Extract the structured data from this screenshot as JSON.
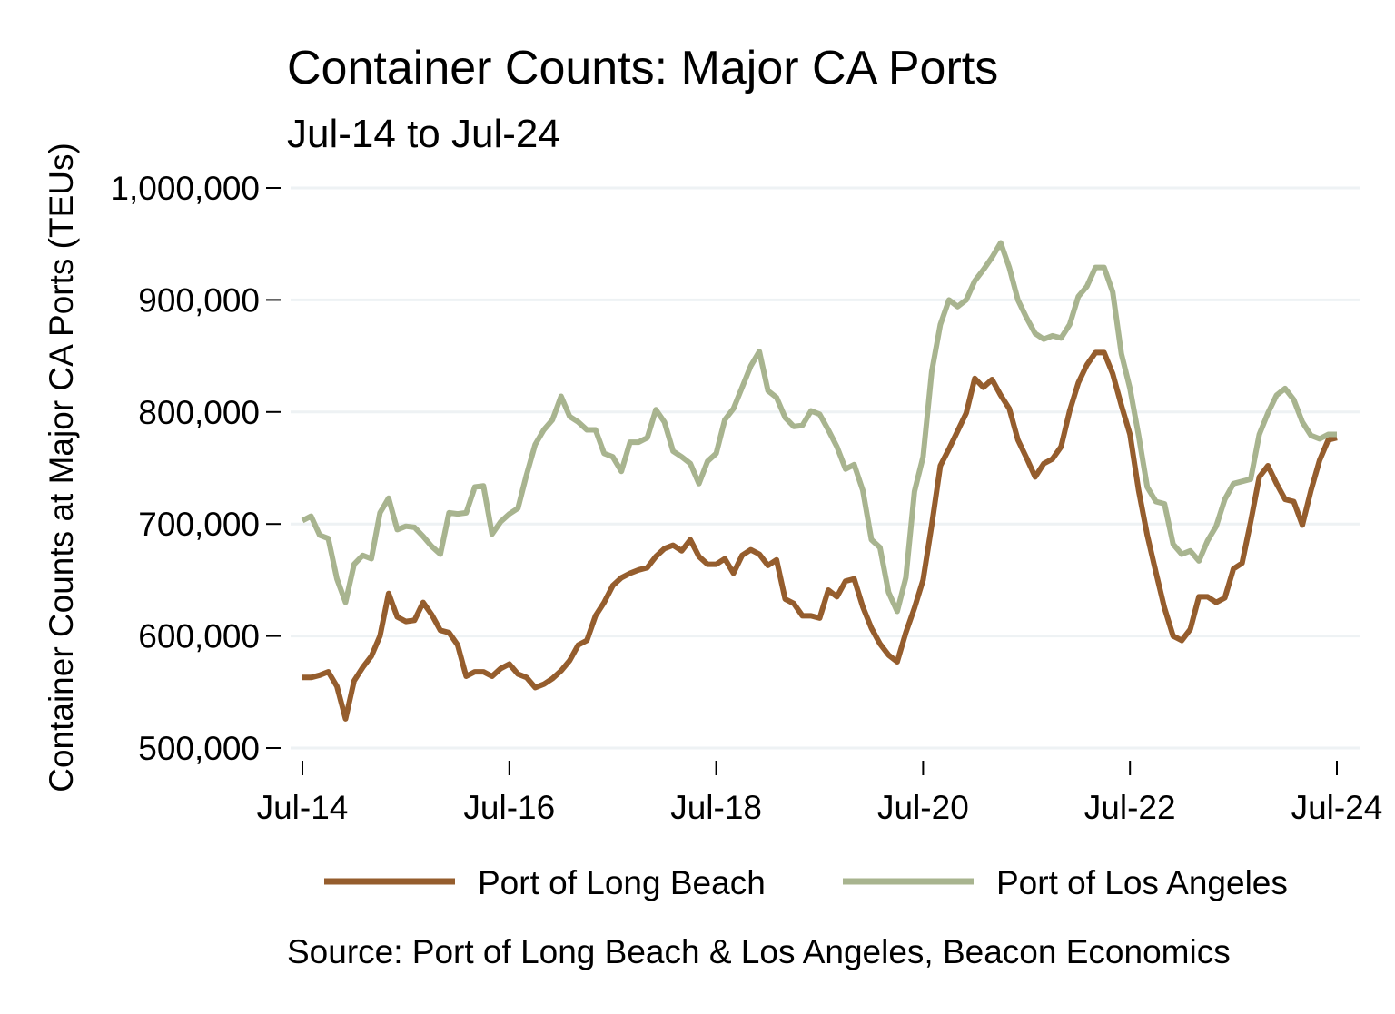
{
  "chart_data": {
    "type": "line",
    "title": "Container Counts: Major CA Ports",
    "subtitle": "Jul-14 to Jul-24",
    "xlabel": "",
    "ylabel": "Container Counts at Major CA Ports (TEUs)",
    "source": "Source: Port of Long Beach & Los Angeles, Beacon Economics",
    "x_unit": "months since Jul-14",
    "xlim": [
      0,
      120
    ],
    "ylim": [
      500000,
      1000000
    ],
    "yticks": [
      500000,
      600000,
      700000,
      800000,
      900000,
      1000000
    ],
    "ytick_labels": [
      "500,000",
      "600,000",
      "700,000",
      "800,000",
      "900,000",
      "1,000,000"
    ],
    "xticks": [
      0,
      24,
      48,
      72,
      96,
      120
    ],
    "xtick_labels": [
      "Jul-14",
      "Jul-16",
      "Jul-18",
      "Jul-20",
      "Jul-22",
      "Jul-24"
    ],
    "grid": true,
    "legend_position": "bottom",
    "series": [
      {
        "name": "Port of Long Beach",
        "color": "#955D2D",
        "values": [
          563,
          563,
          565,
          568,
          555,
          526,
          560,
          572,
          582,
          600,
          638,
          617,
          613,
          614,
          630,
          619,
          605,
          603,
          592,
          564,
          568,
          568,
          564,
          571,
          575,
          566,
          563,
          554,
          557,
          562,
          569,
          578,
          592,
          596,
          618,
          630,
          645,
          652,
          656,
          659,
          661,
          671,
          678,
          681,
          676,
          686,
          671,
          664,
          664,
          669,
          656,
          672,
          677,
          673,
          663,
          668,
          633,
          629,
          618,
          618,
          616,
          641,
          635,
          649,
          651,
          626,
          607,
          593,
          583,
          577,
          603,
          625,
          650,
          699,
          752,
          767,
          783,
          799,
          830,
          822,
          829,
          815,
          803,
          775,
          759,
          742,
          754,
          758,
          769,
          801,
          826,
          842,
          853,
          853,
          834,
          806,
          780,
          730,
          690,
          657,
          625,
          600,
          596,
          606,
          635,
          635,
          630,
          634,
          660,
          665,
          702,
          742,
          752,
          736,
          722,
          720,
          699,
          730,
          757,
          775,
          777
        ]
      },
      {
        "name": "Port of Los Angeles",
        "color": "#A8B48F",
        "values": [
          703,
          707,
          690,
          687,
          651,
          630,
          664,
          672,
          669,
          710,
          723,
          695,
          698,
          697,
          689,
          680,
          673,
          710,
          709,
          710,
          733,
          734,
          691,
          702,
          709,
          714,
          744,
          771,
          784,
          793,
          814,
          796,
          791,
          784,
          784,
          763,
          760,
          747,
          773,
          773,
          777,
          802,
          791,
          765,
          760,
          754,
          736,
          756,
          763,
          793,
          803,
          822,
          841,
          854,
          819,
          813,
          795,
          787,
          788,
          801,
          798,
          784,
          769,
          749,
          753,
          730,
          686,
          679,
          639,
          622,
          652,
          729,
          760,
          836,
          878,
          900,
          894,
          900,
          917,
          927,
          938,
          951,
          929,
          900,
          884,
          870,
          865,
          868,
          866,
          878,
          903,
          912,
          929,
          929,
          907,
          852,
          821,
          779,
          733,
          720,
          718,
          682,
          673,
          676,
          667,
          685,
          698,
          722,
          736,
          738,
          740,
          780,
          799,
          815,
          821,
          811,
          791,
          779,
          776,
          780,
          780
        ]
      }
    ]
  }
}
